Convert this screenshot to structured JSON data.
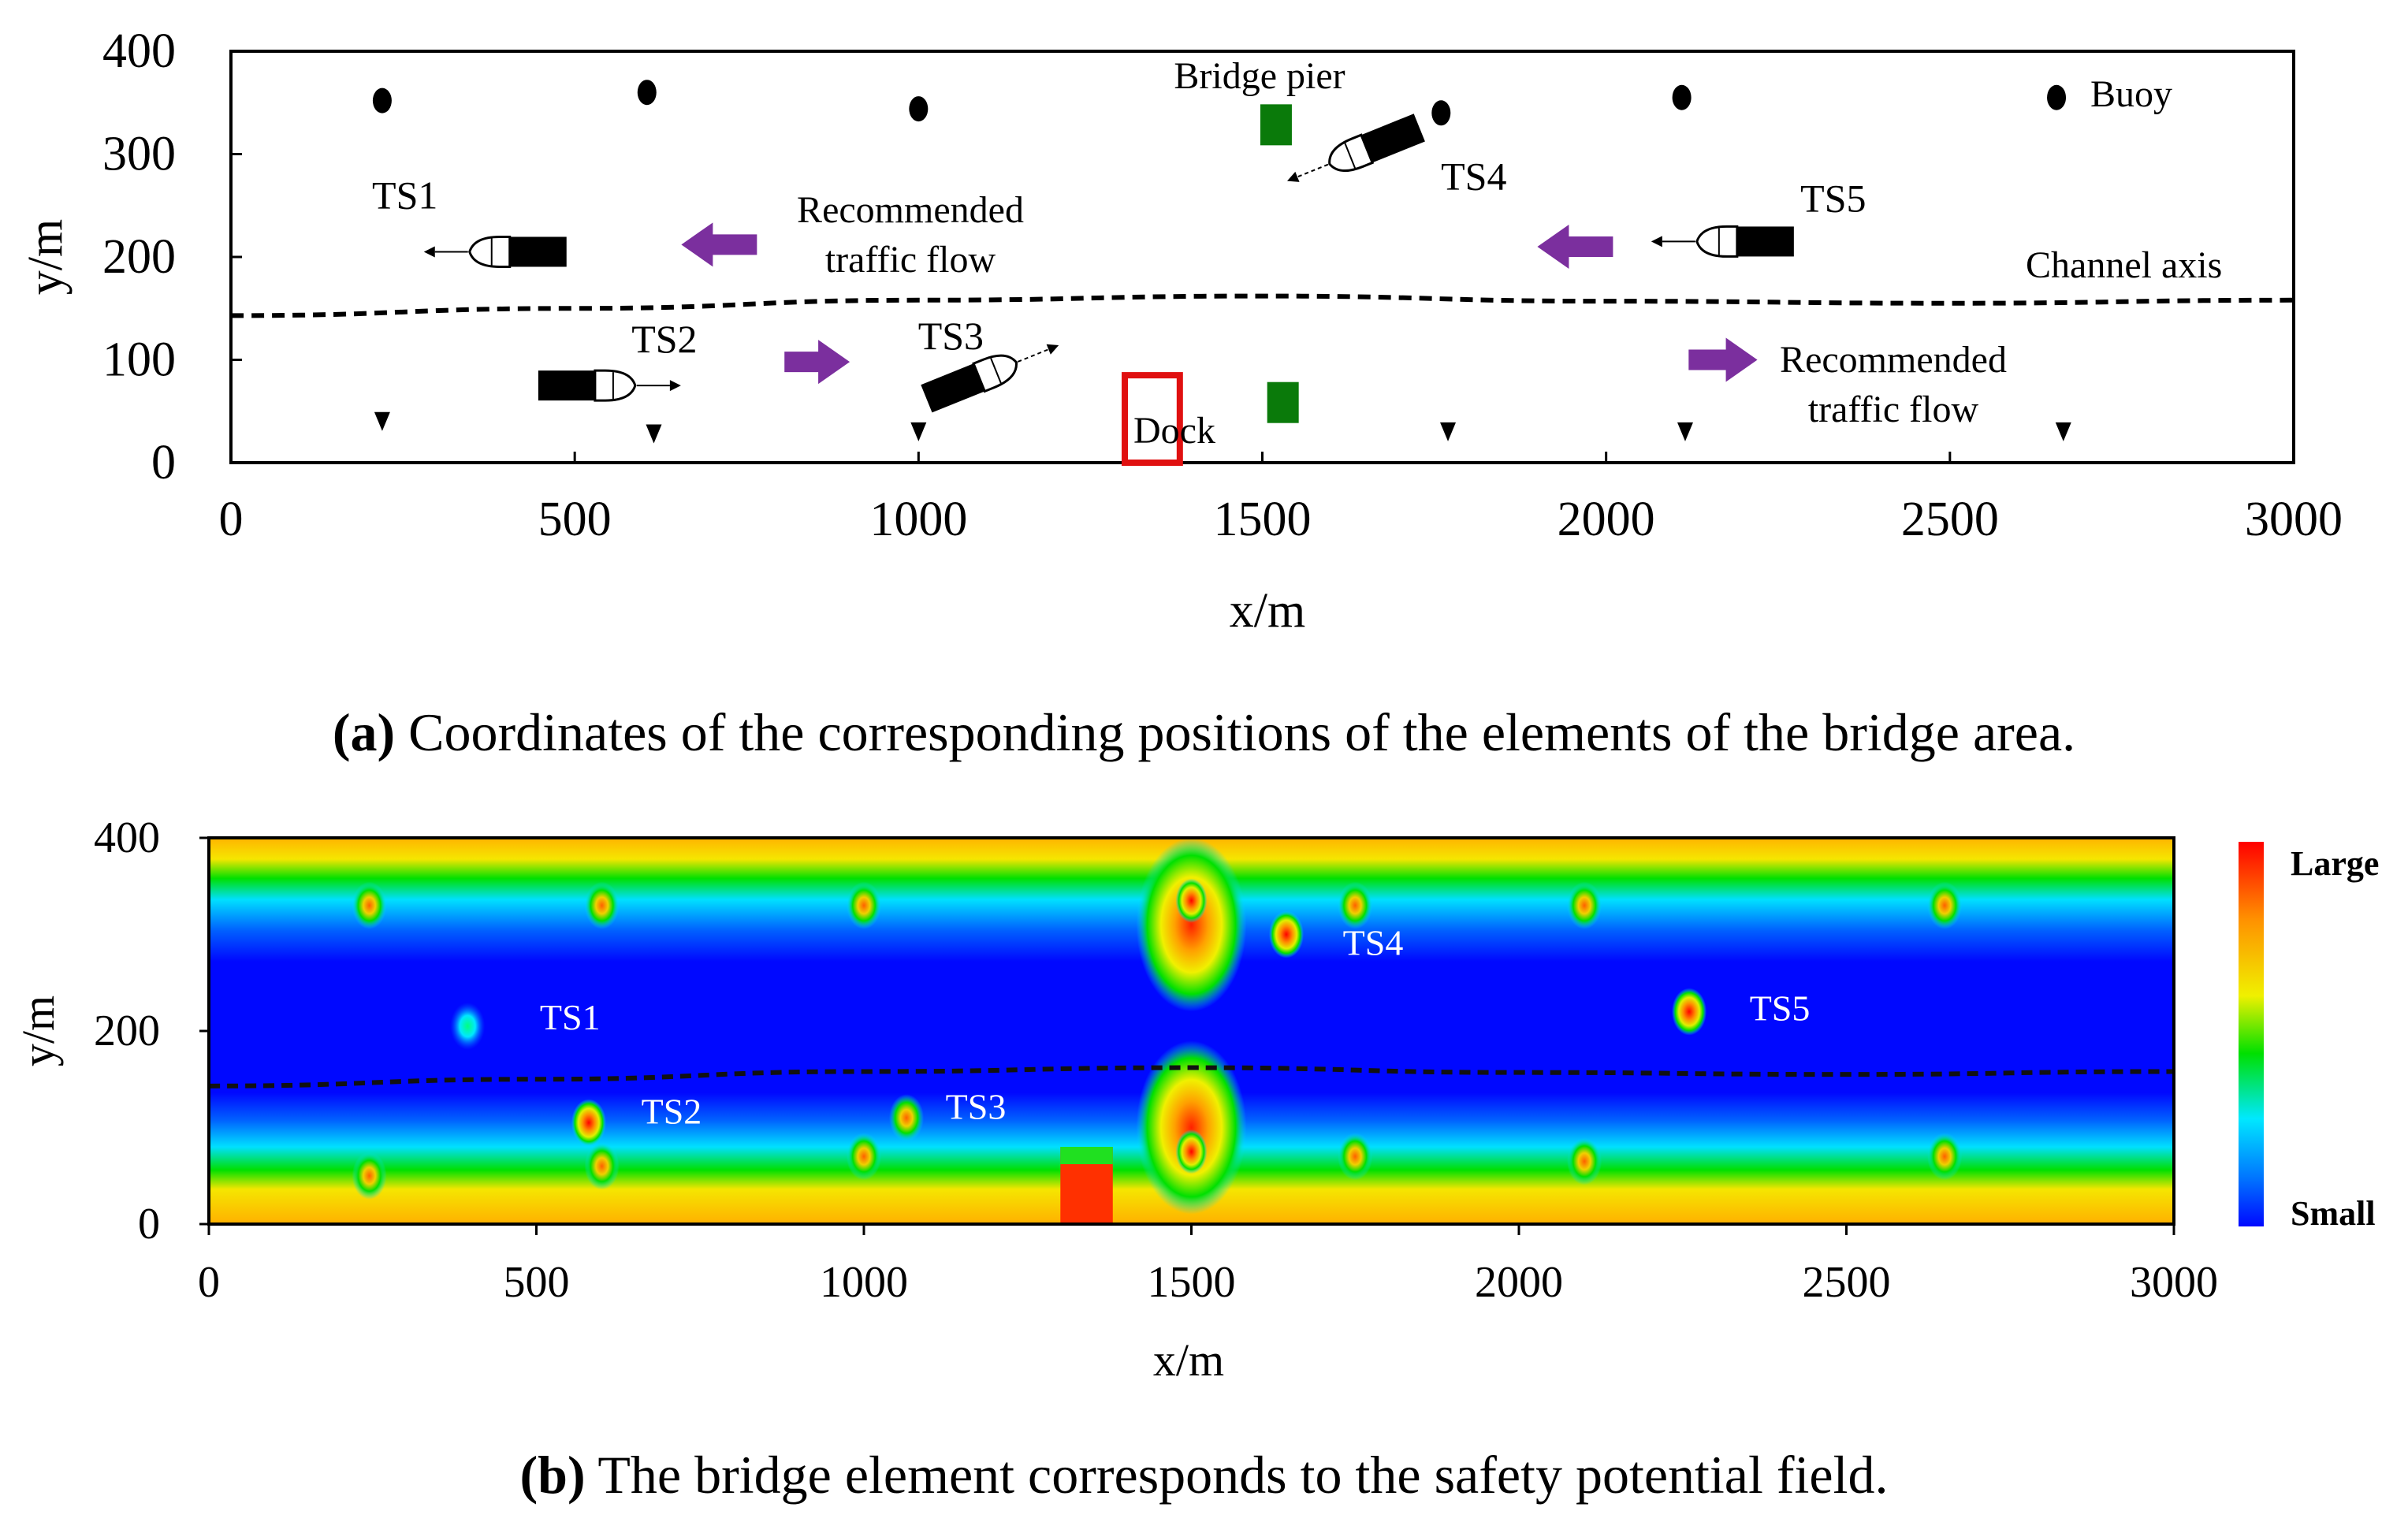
{
  "panel_a": {
    "caption_letter": "(a)",
    "caption_text": "Coordinates of the corresponding positions of the elements of the bridge area.",
    "labels": {
      "bridge_pier": "Bridge pier",
      "buoy": "Buoy",
      "channel_axis": "Channel axis",
      "recommended_flow_upper": [
        "Recommended",
        "traffic flow"
      ],
      "recommended_flow_lower": [
        "Recommended",
        "traffic flow"
      ],
      "dock": "Dock"
    }
  },
  "panel_b": {
    "caption_letter": "(b)",
    "caption_text": "The bridge element corresponds to the safety potential field.",
    "colorbar": {
      "top_label": "Large",
      "bottom_label": "Small"
    }
  },
  "colors": {
    "pier": "#0a7a0a",
    "arrow": "#7b2f9e",
    "dock_outline": "#e01010",
    "field_low": "#0000ff",
    "field_high": "#ff0000"
  },
  "chart_data": [
    {
      "type": "scatter",
      "title": "",
      "xlabel": "x/m",
      "ylabel": "y/m",
      "xlim": [
        0,
        3000
      ],
      "ylim": [
        0,
        400
      ],
      "xticks": [
        0,
        500,
        1000,
        1500,
        2000,
        2500,
        3000
      ],
      "yticks": [
        0,
        100,
        200,
        300,
        400
      ],
      "buoys_upper": [
        [
          220,
          352
        ],
        [
          605,
          360
        ],
        [
          1000,
          344
        ],
        [
          1760,
          340
        ],
        [
          2110,
          355
        ],
        [
          2655,
          355
        ]
      ],
      "buoys_lower": [
        [
          220,
          40
        ],
        [
          615,
          28
        ],
        [
          1000,
          30
        ],
        [
          1770,
          30
        ],
        [
          2115,
          30
        ],
        [
          2665,
          30
        ]
      ],
      "bridge_piers": [
        [
          1520,
          330
        ],
        [
          1530,
          60
        ]
      ],
      "dock": {
        "x": [
          1300,
          1380
        ],
        "y": [
          0,
          85
        ]
      },
      "channel_axis": [
        [
          0,
          143
        ],
        [
          500,
          150
        ],
        [
          1000,
          158
        ],
        [
          1500,
          162
        ],
        [
          2000,
          157
        ],
        [
          2500,
          155
        ],
        [
          3000,
          158
        ]
      ],
      "ships": [
        {
          "name": "TS1",
          "x": 425,
          "y": 205,
          "heading": "west"
        },
        {
          "name": "TS2",
          "x": 510,
          "y": 75,
          "heading": "east"
        },
        {
          "name": "TS3",
          "x": 1070,
          "y": 78,
          "heading": "northeast"
        },
        {
          "name": "TS4",
          "x": 1670,
          "y": 310,
          "heading": "southwest"
        },
        {
          "name": "TS5",
          "x": 2210,
          "y": 215,
          "heading": "west"
        }
      ],
      "flow_arrows": [
        {
          "x": [
            765,
            655
          ],
          "y": 212
        },
        {
          "x": 805,
          "y": 98,
          "x_end": 900
        },
        {
          "x": [
            2010,
            1900
          ],
          "y": 210
        },
        {
          "x": 2120,
          "y": 100,
          "x_end": 2220
        }
      ]
    },
    {
      "type": "heatmap",
      "title": "",
      "xlabel": "x/m",
      "ylabel": "y/m",
      "xlim": [
        0,
        3000
      ],
      "ylim": [
        0,
        400
      ],
      "xticks": [
        0,
        500,
        1000,
        1500,
        2000,
        2500,
        3000
      ],
      "yticks": [
        0,
        200,
        400
      ],
      "channel_axis": [
        [
          0,
          143
        ],
        [
          500,
          150
        ],
        [
          1000,
          158
        ],
        [
          1500,
          162
        ],
        [
          2000,
          157
        ],
        [
          2500,
          155
        ],
        [
          3000,
          158
        ]
      ],
      "hotspots_upper": [
        [
          245,
          330
        ],
        [
          600,
          330
        ],
        [
          1000,
          330
        ],
        [
          1750,
          330
        ],
        [
          2100,
          330
        ],
        [
          2650,
          330
        ]
      ],
      "hotspots_lower": [
        [
          245,
          50
        ],
        [
          600,
          60
        ],
        [
          1000,
          70
        ],
        [
          1750,
          70
        ],
        [
          2100,
          65
        ],
        [
          2650,
          70
        ]
      ],
      "pier_hotspots": [
        [
          1500,
          335
        ],
        [
          1500,
          75
        ]
      ],
      "dock_zone": {
        "x": [
          1300,
          1380
        ],
        "y": [
          0,
          80
        ]
      },
      "ship_hotspots": [
        {
          "name": "TS1",
          "x": 395,
          "y": 205,
          "intensity": "low"
        },
        {
          "name": "TS2",
          "x": 580,
          "y": 105,
          "intensity": "high"
        },
        {
          "name": "TS3",
          "x": 1065,
          "y": 110,
          "intensity": "medium"
        },
        {
          "name": "TS4",
          "x": 1645,
          "y": 300,
          "intensity": "high"
        },
        {
          "name": "TS5",
          "x": 2260,
          "y": 220,
          "intensity": "high"
        }
      ]
    }
  ]
}
